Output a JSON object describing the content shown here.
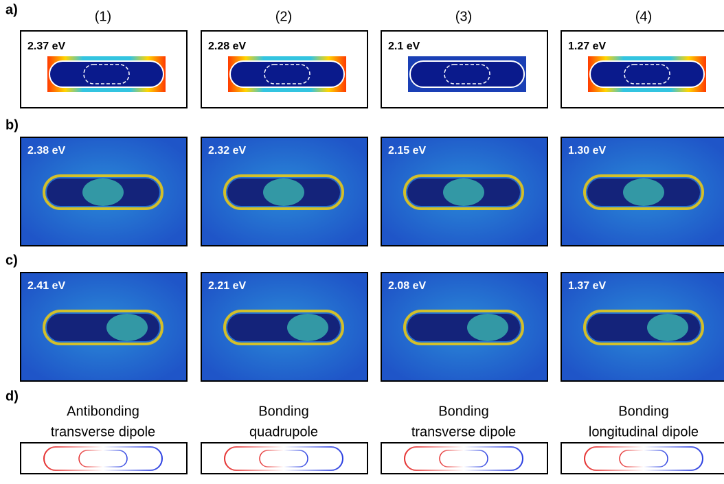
{
  "row_labels": [
    "a)",
    "b)",
    "c)",
    "d)"
  ],
  "column_labels": [
    "(1)",
    "(2)",
    "(3)",
    "(4)"
  ],
  "row_a": {
    "energies": [
      "2.37 eV",
      "2.28 eV",
      "2.1 eV",
      "1.27 eV"
    ]
  },
  "row_b": {
    "energies": [
      "2.38 eV",
      "2.32 eV",
      "2.15 eV",
      "1.30 eV"
    ]
  },
  "row_c": {
    "energies": [
      "2.41 eV",
      "2.21 eV",
      "2.08 eV",
      "1.37 eV"
    ]
  },
  "row_d": {
    "captions": [
      [
        "Antibonding",
        "transverse dipole"
      ],
      [
        "Bonding",
        "quadrupole"
      ],
      [
        "Bonding",
        "transverse dipole"
      ],
      [
        "Bonding",
        "longitudinal dipole"
      ]
    ]
  }
}
